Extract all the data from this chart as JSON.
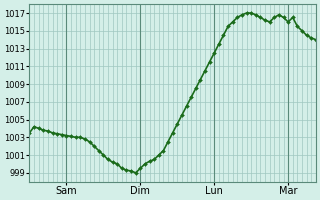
{
  "background_color": "#d4efe8",
  "plot_bg_color": "#d4efe8",
  "line_color": "#1a6b1a",
  "marker": "D",
  "marker_size": 2.0,
  "linewidth": 1.2,
  "ylim": [
    998,
    1018
  ],
  "yticks": [
    999,
    1001,
    1003,
    1005,
    1007,
    1009,
    1011,
    1013,
    1015,
    1017
  ],
  "ytick_fontsize": 6,
  "xtick_fontsize": 7,
  "grid_color": "#a0c8c0",
  "grid_linewidth": 0.5,
  "vline_color": "#5a8a7a",
  "vline_linewidth": 0.8,
  "day_labels": [
    "Sam",
    "Dim",
    "Lun",
    "Mar"
  ],
  "day_positions": [
    24,
    72,
    120,
    168
  ],
  "x_data": [
    0,
    3,
    6,
    9,
    12,
    15,
    18,
    21,
    24,
    27,
    30,
    33,
    36,
    39,
    42,
    45,
    48,
    51,
    54,
    57,
    60,
    63,
    66,
    69,
    72,
    75,
    78,
    81,
    84,
    87,
    90,
    93,
    96,
    99,
    102,
    105,
    108,
    111,
    114,
    117,
    120,
    123,
    126,
    129,
    132,
    135,
    138,
    141,
    144,
    147,
    150,
    153,
    156,
    159,
    162,
    165,
    168,
    171,
    174,
    177,
    180,
    183,
    186
  ],
  "y_data": [
    1003.5,
    1004.2,
    1004.0,
    1003.8,
    1003.7,
    1003.5,
    1003.4,
    1003.3,
    1003.2,
    1003.1,
    1003.0,
    1003.0,
    1002.8,
    1002.5,
    1002.0,
    1001.5,
    1001.0,
    1000.5,
    1000.2,
    1000.0,
    999.5,
    999.3,
    999.2,
    999.0,
    999.5,
    1000.0,
    1000.3,
    1000.5,
    1001.0,
    1001.5,
    1002.5,
    1003.5,
    1004.5,
    1005.5,
    1006.5,
    1007.5,
    1008.5,
    1009.5,
    1010.5,
    1011.5,
    1012.5,
    1013.5,
    1014.5,
    1015.5,
    1016.0,
    1016.5,
    1016.8,
    1017.0,
    1017.0,
    1016.8,
    1016.5,
    1016.2,
    1016.0,
    1016.5,
    1016.8,
    1016.5,
    1016.0,
    1016.5,
    1015.5,
    1015.0,
    1014.5,
    1014.2,
    1014.0
  ]
}
